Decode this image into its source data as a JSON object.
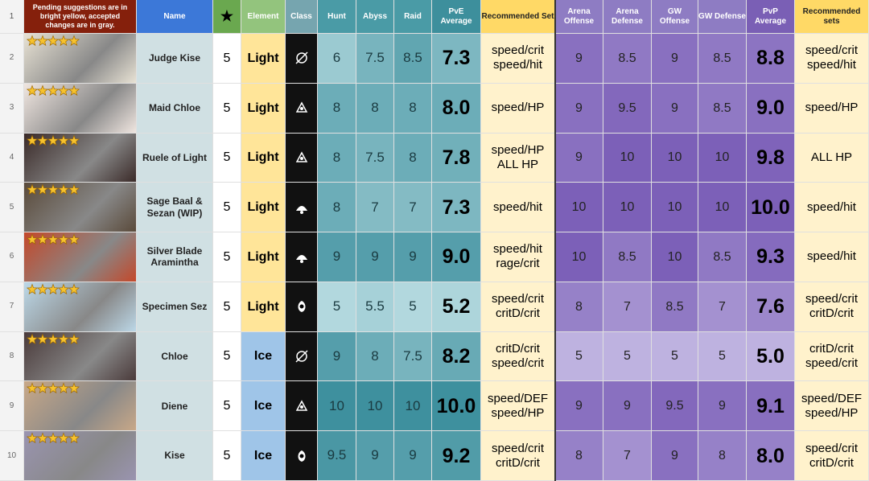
{
  "header": {
    "row_number": "1",
    "note": "Pending suggestions are in bright yellow, accepted changes are in gray.",
    "name": "Name",
    "star": "★",
    "element": "Element",
    "class": "Class",
    "hunt": "Hunt",
    "abyss": "Abyss",
    "raid": "Raid",
    "pve_average": "PvE Average",
    "recommended_set": "Recommended Set",
    "arena_offense": "Arena Offense",
    "arena_defense": "Arena Defense",
    "gw_offense": "GW Offense",
    "gw_defense": "GW Defense",
    "pvp_average": "PvP Average",
    "recommended_sets": "Recommended sets"
  },
  "rows": [
    {
      "row_number": "2",
      "name": "Judge Kise",
      "rarity": "5",
      "element": "Light",
      "hunt": "6",
      "abyss": "7.5",
      "raid": "8.5",
      "pve_average": "7.3",
      "recommended_set": "speed/crit\nspeed/hit",
      "arena_offense": "9",
      "arena_defense": "8.5",
      "gw_offense": "9",
      "gw_defense": "8.5",
      "pvp_average": "8.8",
      "recommended_sets": "speed/crit\nspeed/hit"
    },
    {
      "row_number": "3",
      "name": "Maid Chloe",
      "rarity": "5",
      "element": "Light",
      "hunt": "8",
      "abyss": "8",
      "raid": "8",
      "pve_average": "8.0",
      "recommended_set": "speed/HP",
      "arena_offense": "9",
      "arena_defense": "9.5",
      "gw_offense": "9",
      "gw_defense": "8.5",
      "pvp_average": "9.0",
      "recommended_sets": "speed/HP"
    },
    {
      "row_number": "4",
      "name": "Ruele of Light",
      "rarity": "5",
      "element": "Light",
      "hunt": "8",
      "abyss": "7.5",
      "raid": "8",
      "pve_average": "7.8",
      "recommended_set": "speed/HP\nALL HP",
      "arena_offense": "9",
      "arena_defense": "10",
      "gw_offense": "10",
      "gw_defense": "10",
      "pvp_average": "9.8",
      "recommended_sets": "ALL HP"
    },
    {
      "row_number": "5",
      "name": "Sage Baal &\nSezan (WIP)",
      "rarity": "5",
      "element": "Light",
      "hunt": "8",
      "abyss": "7",
      "raid": "7",
      "pve_average": "7.3",
      "recommended_set": "speed/hit",
      "arena_offense": "10",
      "arena_defense": "10",
      "gw_offense": "10",
      "gw_defense": "10",
      "pvp_average": "10.0",
      "recommended_sets": "speed/hit"
    },
    {
      "row_number": "6",
      "name": "Silver Blade\nAramintha",
      "rarity": "5",
      "element": "Light",
      "hunt": "9",
      "abyss": "9",
      "raid": "9",
      "pve_average": "9.0",
      "recommended_set": "speed/hit\nrage/crit",
      "arena_offense": "10",
      "arena_defense": "8.5",
      "gw_offense": "10",
      "gw_defense": "8.5",
      "pvp_average": "9.3",
      "recommended_sets": "speed/hit"
    },
    {
      "row_number": "7",
      "name": "Specimen Sez",
      "rarity": "5",
      "element": "Light",
      "hunt": "5",
      "abyss": "5.5",
      "raid": "5",
      "pve_average": "5.2",
      "recommended_set": "speed/crit\ncritD/crit",
      "arena_offense": "8",
      "arena_defense": "7",
      "gw_offense": "8.5",
      "gw_defense": "7",
      "pvp_average": "7.6",
      "recommended_sets": "speed/crit\ncritD/crit"
    },
    {
      "row_number": "8",
      "name": "Chloe",
      "rarity": "5",
      "element": "Ice",
      "hunt": "9",
      "abyss": "8",
      "raid": "7.5",
      "pve_average": "8.2",
      "recommended_set": "critD/crit\nspeed/crit",
      "arena_offense": "5",
      "arena_defense": "5",
      "gw_offense": "5",
      "gw_defense": "5",
      "pvp_average": "5.0",
      "recommended_sets": "critD/crit\nspeed/crit"
    },
    {
      "row_number": "9",
      "name": "Diene",
      "rarity": "5",
      "element": "Ice",
      "hunt": "10",
      "abyss": "10",
      "raid": "10",
      "pve_average": "10.0",
      "recommended_set": "speed/DEF\nspeed/HP",
      "arena_offense": "9",
      "arena_defense": "9",
      "gw_offense": "9.5",
      "gw_defense": "9",
      "pvp_average": "9.1",
      "recommended_sets": "speed/DEF\nspeed/HP"
    },
    {
      "row_number": "10",
      "name": "Kise",
      "rarity": "5",
      "element": "Ice",
      "hunt": "9.5",
      "abyss": "9",
      "raid": "9",
      "pve_average": "9.2",
      "recommended_set": "speed/crit\ncritD/crit",
      "arena_offense": "8",
      "arena_defense": "7",
      "gw_offense": "9",
      "gw_defense": "8",
      "pvp_average": "8.0",
      "recommended_sets": "speed/crit\ncritD/crit"
    }
  ]
}
